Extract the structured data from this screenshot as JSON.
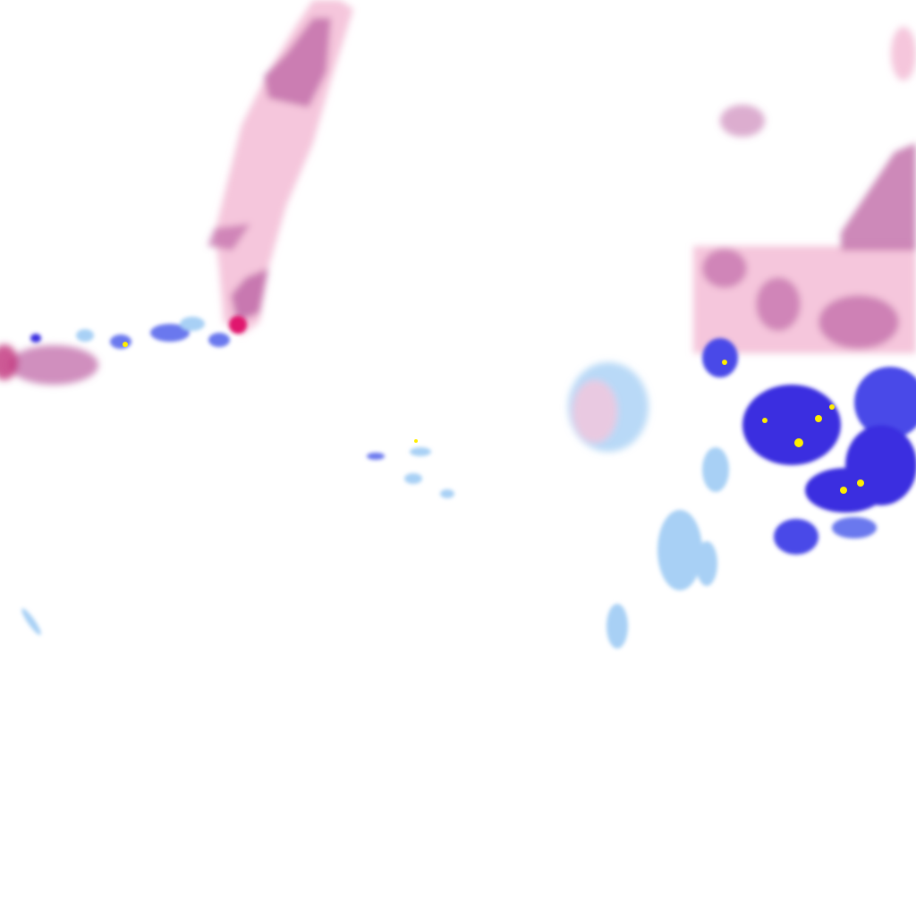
{
  "map": {
    "type": "precipitation-radar-tile",
    "colors": {
      "background": "#ffffff",
      "snow_light": "#f5c6dc",
      "snow_moderate": "#c06aa8",
      "snow_heavy": "#e0196e",
      "rain_light": "#a8d0f5",
      "rain_moderate": "#6a78ee",
      "rain_heavy": "#3a2fe0",
      "rain_extreme": "#ffee00"
    }
  }
}
